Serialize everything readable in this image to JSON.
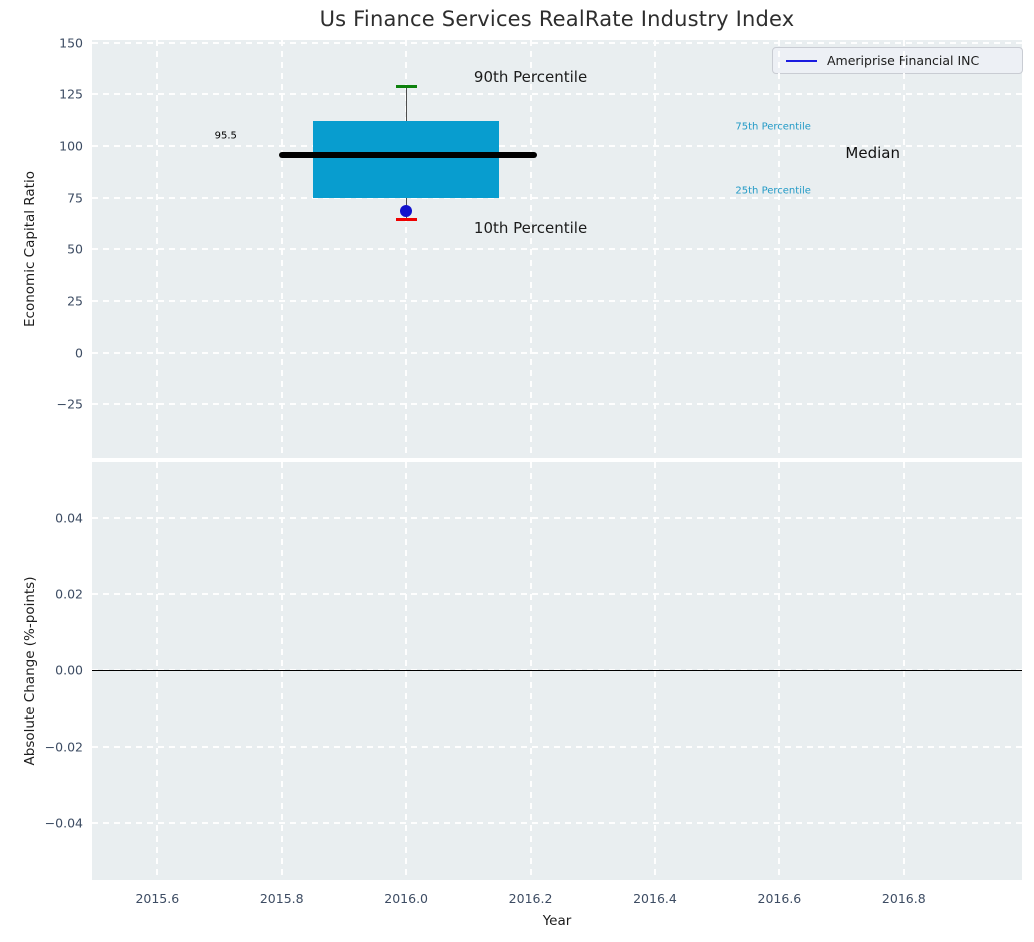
{
  "title": "Us Finance Services RealRate Industry Index",
  "legend": {
    "label": "Ameriprise Financial INC",
    "line_color": "#1b1be0"
  },
  "colors": {
    "axes_background": "#e9eef0",
    "grid": "#ffffff",
    "tick_label": "#3d4c63",
    "text": "#1c1c1c",
    "box_fill": "#089dcf",
    "median_line": "#000000",
    "p90_cap": "#0d810d",
    "p10_cap": "#ee0000",
    "company_marker": "#1111cc",
    "whisker": "#4d4d4d",
    "zero_line": "#000000",
    "percentile_label": "#229ac6"
  },
  "chart_data": [
    {
      "type": "box",
      "title": "Us Finance Services RealRate Industry Index",
      "ylabel": "Economic Capital Ratio",
      "grid": true,
      "legend_position": "upper right",
      "xlim": [
        2015.495,
        2016.99
      ],
      "ylim": [
        -51,
        151.3
      ],
      "xticks": [
        2015.6,
        2015.8,
        2016.0,
        2016.2,
        2016.4,
        2016.6,
        2016.8
      ],
      "xtick_labels": [
        "2015.6",
        "2015.8",
        "2016.0",
        "2016.2",
        "2016.4",
        "2016.6",
        "2016.8"
      ],
      "yticks": [
        150,
        125,
        100,
        75,
        50,
        25,
        0,
        -25
      ],
      "ytick_labels": [
        "150",
        "125",
        "100",
        "75",
        "50",
        "25",
        "0",
        "−25"
      ],
      "series": [
        {
          "name": "Ameriprise Financial INC",
          "x": [
            2016.0
          ],
          "values": [
            68.5
          ],
          "marker": "circle",
          "color": "#1111cc"
        }
      ],
      "box": {
        "x_center": 2016.0,
        "year": 2016,
        "p90": 129,
        "q75": 112,
        "median": 95.5,
        "q25": 75,
        "p10": 64.5,
        "median_value_label": "95.5",
        "box_x_span": [
          2015.85,
          2016.15
        ],
        "median_x_span": [
          2015.795,
          2016.21
        ],
        "cap_x_span": [
          2015.983,
          2016.017
        ]
      },
      "annotations": [
        {
          "text": "90th Percentile",
          "x": 2016.2,
          "y": 133.5,
          "color": "#1c1c1c",
          "size": 15
        },
        {
          "text": "10th Percentile",
          "x": 2016.2,
          "y": 60.4,
          "color": "#1c1c1c",
          "size": 15
        },
        {
          "text": "95.5",
          "x": 2015.71,
          "y": 105,
          "color": "#000000",
          "size": 10
        },
        {
          "text": "75th Percentile",
          "x": 2016.59,
          "y": 109,
          "color": "#229ac6",
          "size": 10
        },
        {
          "text": "25th Percentile",
          "x": 2016.59,
          "y": 78,
          "color": "#229ac6",
          "size": 10
        },
        {
          "text": "Median",
          "x": 2016.75,
          "y": 96.5,
          "color": "#111111",
          "size": 15
        }
      ]
    },
    {
      "type": "line",
      "ylabel": "Absolute Change (%-points)",
      "xlabel": "Year",
      "grid": true,
      "xlim": [
        2015.495,
        2016.99
      ],
      "ylim": [
        -0.055,
        0.0547
      ],
      "xticks": [
        2015.6,
        2015.8,
        2016.0,
        2016.2,
        2016.4,
        2016.6,
        2016.8
      ],
      "xtick_labels": [
        "2015.6",
        "2015.8",
        "2016.0",
        "2016.2",
        "2016.4",
        "2016.6",
        "2016.8"
      ],
      "yticks": [
        0.04,
        0.02,
        0.0,
        -0.02,
        -0.04
      ],
      "ytick_labels": [
        "0.04",
        "0.02",
        "0.00",
        "−0.02",
        "−0.04"
      ],
      "zero_line": 0.0,
      "series": []
    }
  ]
}
